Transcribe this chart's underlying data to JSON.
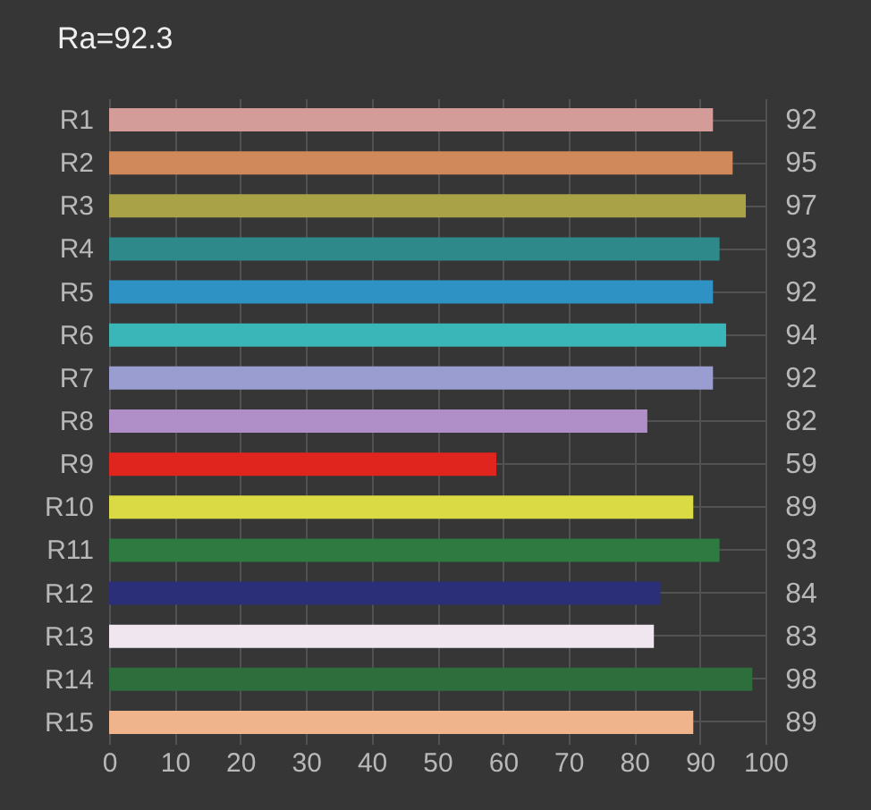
{
  "chart_data": {
    "type": "bar",
    "orientation": "horizontal",
    "title": "Ra=92.3",
    "categories": [
      "R1",
      "R2",
      "R3",
      "R4",
      "R5",
      "R6",
      "R7",
      "R8",
      "R9",
      "R10",
      "R11",
      "R12",
      "R13",
      "R14",
      "R15"
    ],
    "values": [
      92,
      95,
      97,
      93,
      92,
      94,
      92,
      82,
      59,
      89,
      93,
      84,
      83,
      98,
      89
    ],
    "colors": [
      "#d49c98",
      "#d0895a",
      "#a9a247",
      "#2e8a8a",
      "#2e93c4",
      "#3ab5b8",
      "#9a9dd0",
      "#b08ec8",
      "#e0251f",
      "#dada44",
      "#2e7a40",
      "#2a2f78",
      "#efe6ef",
      "#2e6e3c",
      "#f0b48c"
    ],
    "xlim": [
      0,
      100
    ],
    "xticks": [
      0,
      10,
      20,
      30,
      40,
      50,
      60,
      70,
      80,
      90,
      100
    ],
    "data_labels": true,
    "grid": true
  }
}
